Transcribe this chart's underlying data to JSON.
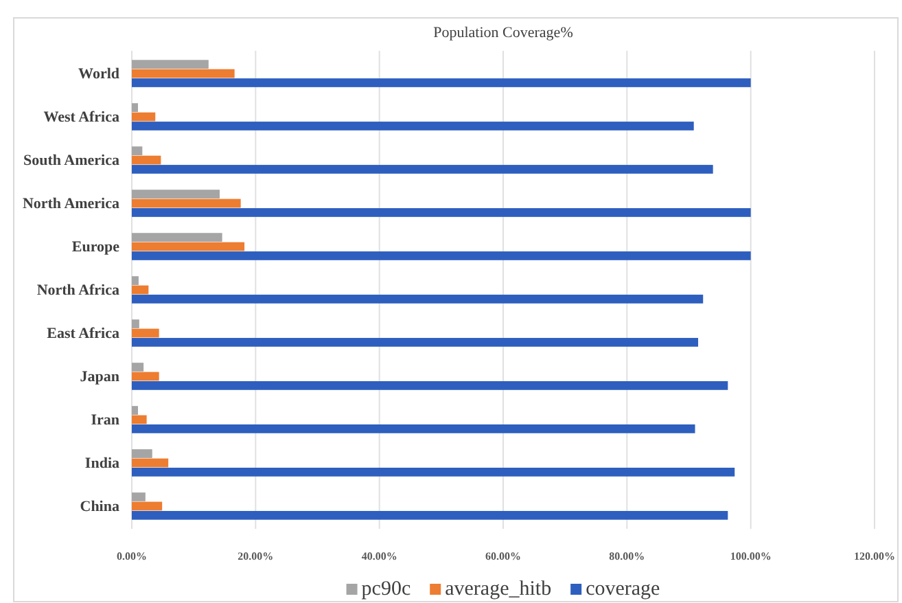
{
  "chart_data": {
    "type": "bar",
    "orientation": "horizontal",
    "title": "Population Coverage%",
    "categories": [
      "World",
      "West Africa",
      "South America",
      "North America",
      "Europe",
      "North Africa",
      "East Africa",
      "Japan",
      "Iran",
      "India",
      "China"
    ],
    "series": [
      {
        "name": "pc90c",
        "color": "#a5a5a5",
        "values": [
          12.4,
          1.0,
          1.7,
          14.2,
          14.6,
          1.1,
          1.2,
          1.9,
          1.0,
          3.3,
          2.2
        ]
      },
      {
        "name": "average_hitb",
        "color": "#ed7d31",
        "values": [
          16.6,
          3.8,
          4.7,
          17.6,
          18.2,
          2.7,
          4.4,
          4.4,
          2.4,
          5.9,
          4.9
        ]
      },
      {
        "name": "coverage",
        "color": "#2e5fbf",
        "values": [
          100,
          90.8,
          93.9,
          100,
          100,
          92.3,
          91.5,
          96.3,
          91.0,
          97.4,
          96.3
        ]
      }
    ],
    "xlim": [
      0,
      120
    ],
    "xticks": [
      {
        "value": 0,
        "label": "0.00%"
      },
      {
        "value": 20,
        "label": "20.00%"
      },
      {
        "value": 40,
        "label": "40.00%"
      },
      {
        "value": 60,
        "label": "60.00%"
      },
      {
        "value": 80,
        "label": "80.00%"
      },
      {
        "value": 100,
        "label": "100.00%"
      },
      {
        "value": 120,
        "label": "120.00%"
      }
    ],
    "grid": "x",
    "legend": "bottom"
  }
}
